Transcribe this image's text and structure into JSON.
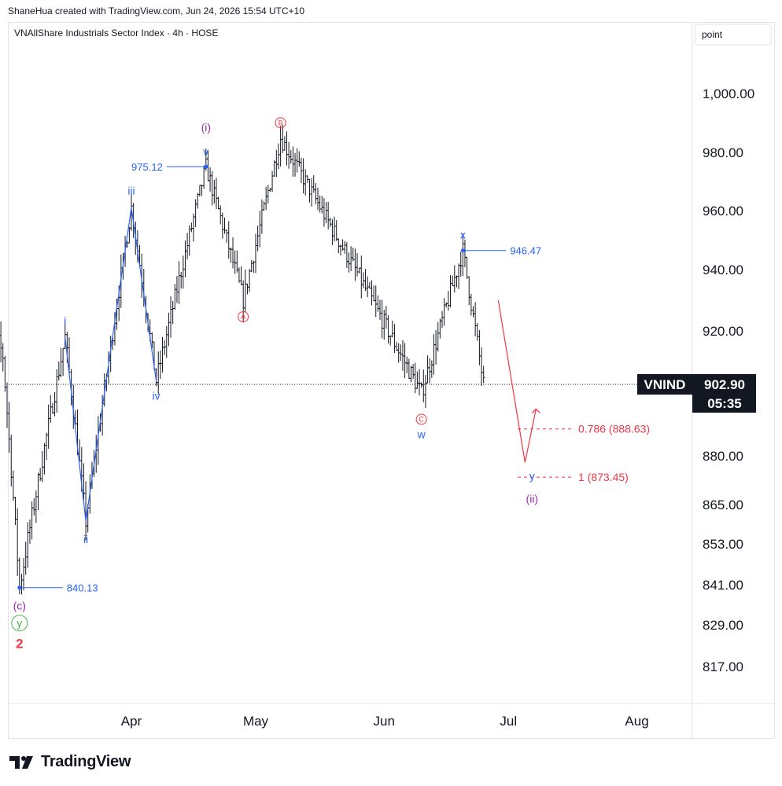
{
  "header": {
    "credit": "ShaneHua created with TradingView.com, Jun 24, 2026 15:54 UTC+10"
  },
  "footer": {
    "brand": "TradingView"
  },
  "chart_data": {
    "type": "candlestick",
    "title": "VNAllShare Industrials Sector Index · 4h · HOSE",
    "scale_label": "point",
    "symbol": "VNIND",
    "last_price": "902.90",
    "countdown": "05:35",
    "x_ticks": [
      "Apr",
      "May",
      "Jun",
      "Jul",
      "Aug"
    ],
    "y_ticks": [
      "1,000.00",
      "980.00",
      "960.00",
      "940.00",
      "920.00",
      "880.00",
      "865.00",
      "853.00",
      "841.00",
      "829.00",
      "817.00"
    ],
    "colors": {
      "blue": "#2962ff",
      "purple": "#9c27b0",
      "red": "#f23645",
      "green": "#4caf50",
      "dark": "#131722"
    },
    "wave_labels": [
      {
        "text": "i",
        "color": "blue"
      },
      {
        "text": "ii",
        "color": "blue"
      },
      {
        "text": "iii",
        "color": "blue"
      },
      {
        "text": "iv",
        "color": "blue"
      },
      {
        "text": "v",
        "color": "blue"
      },
      {
        "text": "(i)",
        "color": "purple"
      },
      {
        "text": "A",
        "color": "red",
        "circled": true
      },
      {
        "text": "B",
        "color": "red",
        "circled": true
      },
      {
        "text": "C",
        "color": "red",
        "circled": true
      },
      {
        "text": "w",
        "color": "blue"
      },
      {
        "text": "x",
        "color": "blue"
      },
      {
        "text": "y",
        "color": "blue"
      },
      {
        "text": "(ii)",
        "color": "purple"
      },
      {
        "text": "(c)",
        "color": "purple"
      },
      {
        "text": "y",
        "color": "green",
        "circled": true
      },
      {
        "text": "2",
        "color": "red"
      }
    ],
    "price_labels": [
      {
        "text": "975.12",
        "value": 975.12
      },
      {
        "text": "946.47",
        "value": 946.47
      },
      {
        "text": "840.13",
        "value": 840.13
      }
    ],
    "fib_levels": [
      {
        "text": "0.786 (888.63)",
        "value": 888.63
      },
      {
        "text": "1 (873.45)",
        "value": 873.45
      }
    ],
    "swing_points": [
      {
        "label": "(c) 2",
        "date": "Mar 05",
        "price": 840.13
      },
      {
        "label": "i",
        "date": "Mar 16",
        "price": 918
      },
      {
        "label": "ii",
        "date": "Mar 21",
        "price": 860
      },
      {
        "label": "iii",
        "date": "Apr 01",
        "price": 961
      },
      {
        "label": "iv",
        "date": "Apr 07",
        "price": 904
      },
      {
        "label": "v / (i)",
        "date": "Apr 19",
        "price": 975.12
      },
      {
        "label": "A",
        "date": "Apr 28",
        "price": 930
      },
      {
        "label": "B",
        "date": "May 07",
        "price": 985
      },
      {
        "label": "C / w",
        "date": "Jun 10",
        "price": 900
      },
      {
        "label": "x",
        "date": "Jun 20",
        "price": 946.47
      },
      {
        "label": "y / (ii)",
        "date": "Jul 05",
        "price": 878
      }
    ]
  }
}
